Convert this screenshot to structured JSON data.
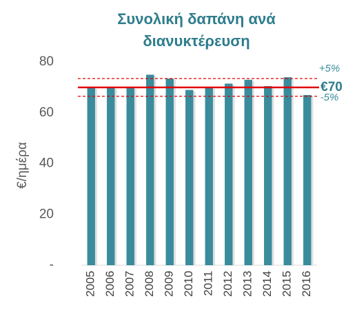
{
  "chart_data": {
    "type": "bar",
    "title": [
      "Συνολική δαπάνη ανά",
      "διανυκτέρευση"
    ],
    "y_label": "€/ημέρα",
    "categories": [
      "2005",
      "2006",
      "2007",
      "2008",
      "2009",
      "2010",
      "2011",
      "2012",
      "2013",
      "2014",
      "2015",
      "2016"
    ],
    "values": [
      70,
      70,
      70,
      75,
      73.5,
      69,
      70,
      71.5,
      73,
      70.5,
      74,
      67
    ],
    "color": "#3a8c9c",
    "ylim": [
      0,
      80
    ],
    "yticks": [
      {
        "value": 0,
        "label": "-"
      },
      20,
      40,
      60,
      80
    ],
    "reference": {
      "value": 70,
      "label": "€70",
      "color": "#e00000"
    },
    "band": {
      "upper": {
        "value": 5,
        "label": "+5%"
      },
      "lower": {
        "value": -5,
        "label": "-5%"
      }
    }
  }
}
